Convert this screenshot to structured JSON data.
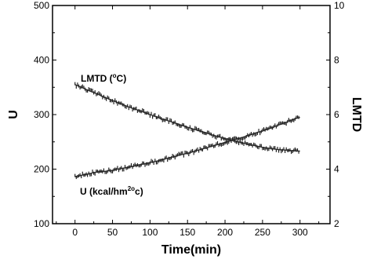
{
  "chart_data": {
    "type": "line",
    "xlabel": "Time(min)",
    "ylabel_left": "U",
    "ylabel_right": "LMTD",
    "xlim": [
      -30,
      340
    ],
    "ylim_left": [
      100,
      500
    ],
    "ylim_right": [
      2,
      10
    ],
    "x_ticks": [
      0,
      50,
      100,
      150,
      200,
      250,
      300
    ],
    "y_ticks_left": [
      100,
      200,
      300,
      400,
      500
    ],
    "y_ticks_right": [
      2,
      4,
      6,
      8,
      10
    ],
    "grid": false,
    "annotations": [
      {
        "text": "LMTD (",
        "sup": "o",
        "after": "C)"
      },
      {
        "text": "U (kcal/hm",
        "sup": "2o",
        "after": "c)"
      }
    ],
    "series": [
      {
        "axis": "left",
        "x": [
          0,
          10,
          20,
          30,
          40,
          50,
          60,
          70,
          80,
          90,
          100,
          110,
          120,
          130,
          140,
          150,
          160,
          170,
          180,
          190,
          200,
          210,
          220,
          230,
          240,
          250,
          260,
          270,
          280,
          290,
          300
        ],
        "values": [
          186,
          189,
          192,
          195,
          196,
          198,
          201,
          203,
          206,
          209,
          212,
          215,
          219,
          222,
          226,
          229,
          233,
          237,
          241,
          245,
          249,
          253,
          257,
          261,
          266,
          270,
          275,
          280,
          285,
          291,
          295
        ]
      },
      {
        "axis": "right",
        "x": [
          0,
          10,
          20,
          30,
          40,
          50,
          60,
          70,
          80,
          90,
          100,
          110,
          120,
          130,
          140,
          150,
          160,
          170,
          180,
          190,
          200,
          210,
          220,
          230,
          240,
          250,
          260,
          270,
          280,
          290,
          300
        ],
        "values": [
          7.1,
          6.98,
          6.86,
          6.75,
          6.63,
          6.52,
          6.41,
          6.3,
          6.2,
          6.1,
          6.0,
          5.9,
          5.81,
          5.72,
          5.63,
          5.54,
          5.45,
          5.36,
          5.28,
          5.2,
          5.12,
          5.06,
          4.99,
          4.92,
          4.86,
          4.8,
          4.76,
          4.72,
          4.7,
          4.68,
          4.66
        ]
      }
    ]
  }
}
